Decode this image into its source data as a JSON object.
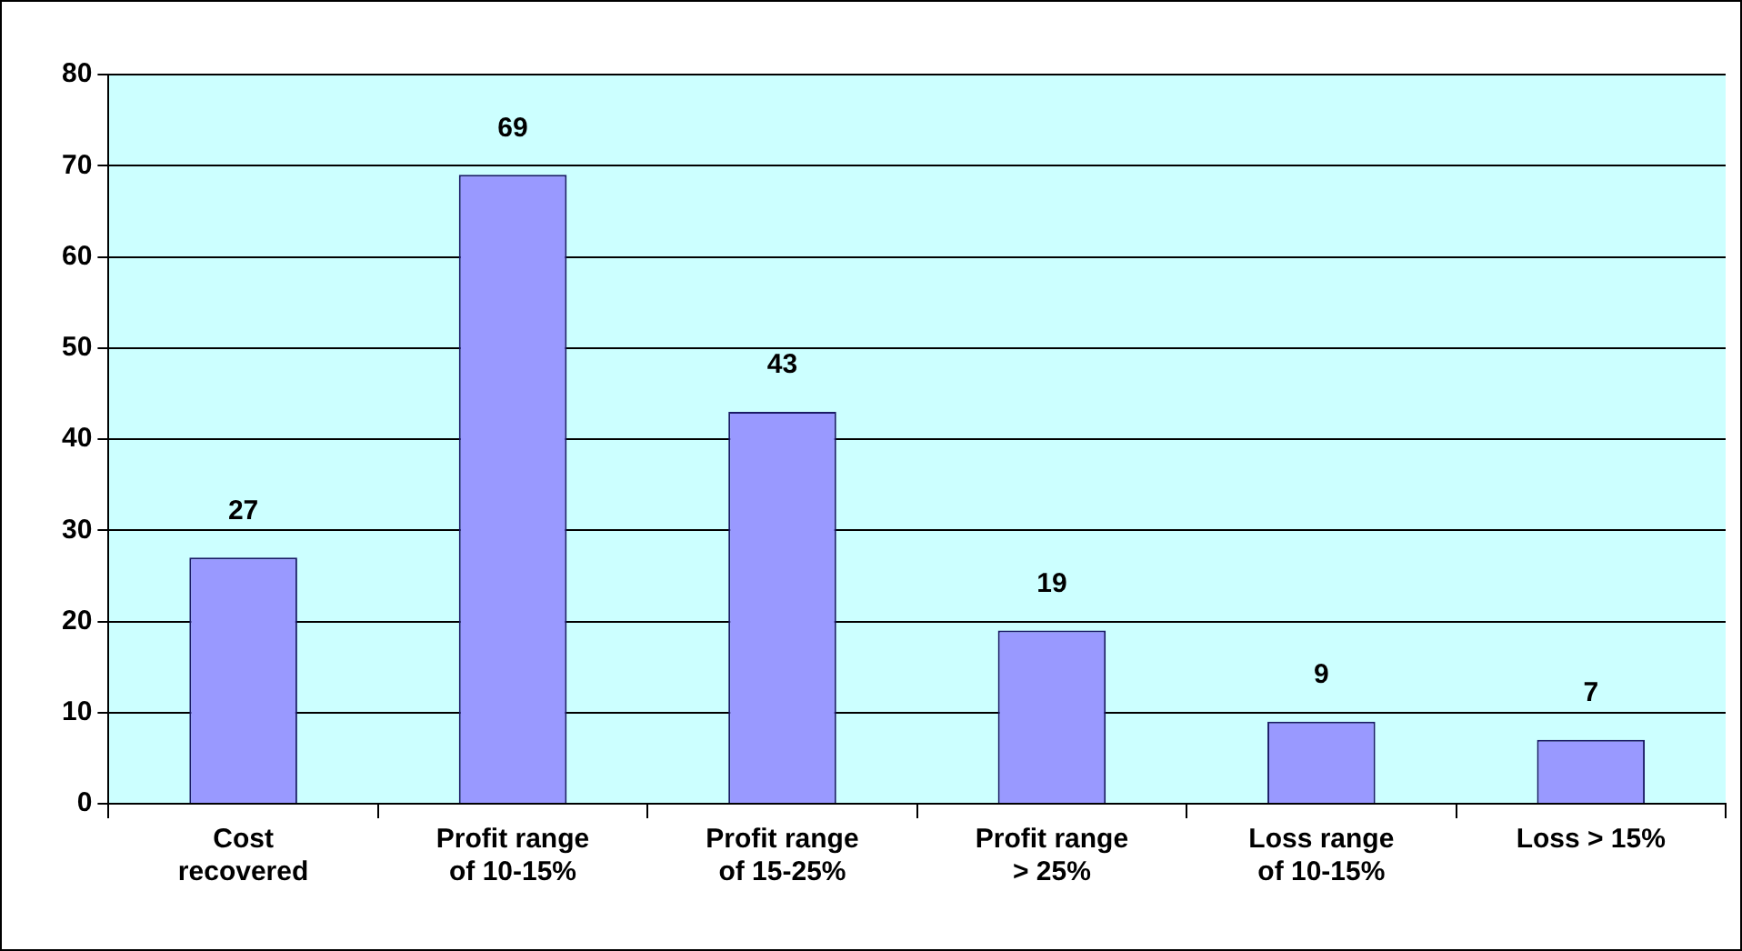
{
  "chart_data": {
    "type": "bar",
    "categories": [
      "Cost recovered",
      "Profit range of 10-15%",
      "Profit range of 15-25%",
      "Profit range > 25%",
      "Loss range of 10-15%",
      "Loss > 15%"
    ],
    "values": [
      27,
      69,
      43,
      19,
      9,
      7
    ],
    "color": "#9999ff",
    "ylim": [
      0,
      80
    ],
    "yticks": [
      0,
      10,
      20,
      30,
      40,
      50,
      60,
      70,
      80
    ],
    "grid": "y",
    "data_labels": true,
    "legend": false
  }
}
